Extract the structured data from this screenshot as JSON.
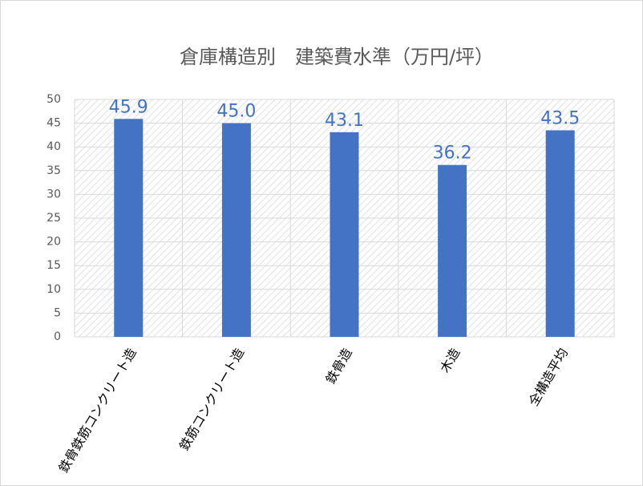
{
  "chart_data": {
    "type": "bar",
    "title": "倉庫構造別　建築費水準（万円/坪）",
    "categories": [
      "鉄骨鉄筋コンクリート造",
      "鉄筋コンクリート造",
      "鉄骨造",
      "木造",
      "全構造平均"
    ],
    "values": [
      45.9,
      45.0,
      43.1,
      36.2,
      43.5
    ],
    "value_labels": [
      "45.9",
      "45.0",
      "43.1",
      "36.2",
      "43.5"
    ],
    "color": "#4472c4",
    "ylim": [
      0,
      50
    ],
    "yticks": [
      0,
      5,
      10,
      15,
      20,
      25,
      30,
      35,
      40,
      45,
      50
    ],
    "grid": true
  }
}
